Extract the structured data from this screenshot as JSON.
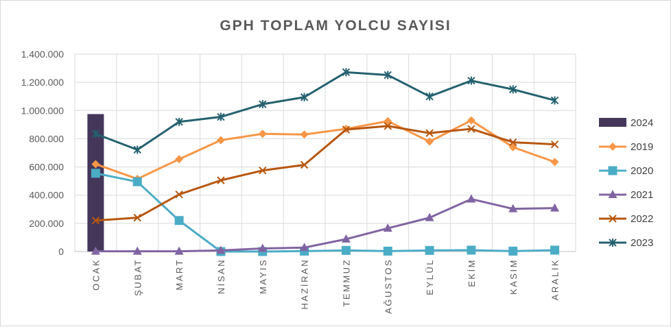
{
  "chart_data": {
    "type": "line",
    "title": "GPH TOPLAM  YOLCU SAYISI",
    "xlabel": "",
    "ylabel": "",
    "categories": [
      "OCAK",
      "ŞUBAT",
      "MART",
      "NİSAN",
      "MAYIS",
      "HAZİRAN",
      "TEMMUZ",
      "AĞUSTOS",
      "EYLÜL",
      "EKİM",
      "KASIM",
      "ARALIK"
    ],
    "y_tick_labels": [
      "0",
      "200.000",
      "400.000",
      "600.000",
      "800.000",
      "1.000.000",
      "1.200.000",
      "1.400.000"
    ],
    "ylim": [
      0,
      1400000
    ],
    "grid": true,
    "legend_position": "right",
    "series": [
      {
        "name": "2024",
        "kind": "bar",
        "color": "#44375a",
        "values": [
          975000,
          null,
          null,
          null,
          null,
          null,
          null,
          null,
          null,
          null,
          null,
          null
        ]
      },
      {
        "name": "2019",
        "kind": "line",
        "marker": "diamond",
        "color": "#f79646",
        "values": [
          620000,
          515000,
          655000,
          790000,
          835000,
          830000,
          870000,
          925000,
          780000,
          930000,
          740000,
          635000
        ]
      },
      {
        "name": "2020",
        "kind": "line",
        "marker": "square",
        "color": "#4bacc6",
        "values": [
          555000,
          495000,
          220000,
          0,
          0,
          3000,
          8000,
          3000,
          8000,
          10000,
          3000,
          10000
        ]
      },
      {
        "name": "2021",
        "kind": "line",
        "marker": "triangle",
        "color": "#8064a2",
        "values": [
          2000,
          2000,
          2000,
          8000,
          22000,
          28000,
          88000,
          165000,
          240000,
          372000,
          303000,
          308000
        ]
      },
      {
        "name": "2022",
        "kind": "line",
        "marker": "x",
        "color": "#b7560f",
        "values": [
          220000,
          240000,
          405000,
          505000,
          575000,
          615000,
          865000,
          890000,
          840000,
          870000,
          775000,
          760000
        ]
      },
      {
        "name": "2023",
        "kind": "line",
        "marker": "star",
        "color": "#24616f",
        "values": [
          835000,
          722000,
          920000,
          955000,
          1045000,
          1095000,
          1272000,
          1252000,
          1100000,
          1212000,
          1150000,
          1072000
        ]
      }
    ]
  }
}
